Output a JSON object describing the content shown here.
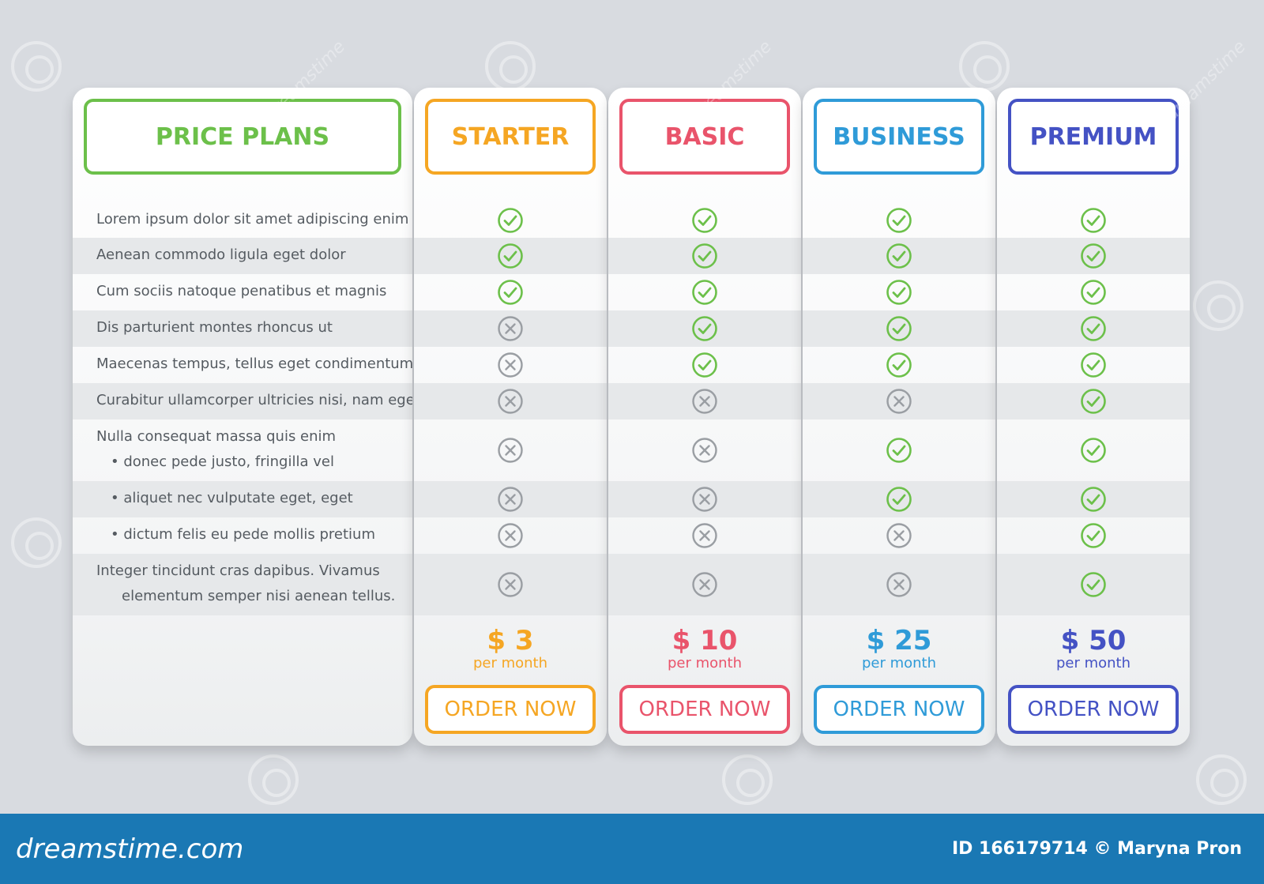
{
  "colors": {
    "features": "#6cc04a",
    "starter": "#f5a623",
    "basic": "#e9546b",
    "business": "#2f9bd8",
    "premium": "#4452c4",
    "check": "#6cc04a",
    "cross": "#9a9ea3"
  },
  "header": {
    "title": "PRICE PLANS"
  },
  "features": [
    {
      "text": "Lorem ipsum dolor sit amet adipiscing enim"
    },
    {
      "text": "Aenean commodo ligula eget dolor"
    },
    {
      "text": "Cum sociis natoque penatibus et magnis"
    },
    {
      "text": "Dis parturient montes rhoncus ut"
    },
    {
      "text": "Maecenas tempus, tellus eget condimentum"
    },
    {
      "text": "Curabitur ullamcorper ultricies nisi, nam eget"
    },
    {
      "text": "Nulla consequat massa quis enim",
      "text2": "• donec pede justo, fringilla vel"
    },
    {
      "text": "• aliquet nec vulputate eget, eget"
    },
    {
      "text": "• dictum felis eu pede mollis pretium"
    },
    {
      "text": "Integer tincidunt cras dapibus. Vivamus",
      "text2": "elementum semper nisi aenean tellus."
    }
  ],
  "plans": [
    {
      "name": "STARTER",
      "price": "$ 3",
      "period": "per month",
      "cta": "ORDER NOW",
      "color_key": "starter",
      "marks": [
        "check-icon",
        "check-icon",
        "check-icon",
        "cross-icon",
        "cross-icon",
        "cross-icon",
        "cross-icon",
        "cross-icon",
        "cross-icon",
        "cross-icon"
      ]
    },
    {
      "name": "BASIC",
      "price": "$ 10",
      "period": "per month",
      "cta": "ORDER NOW",
      "color_key": "basic",
      "marks": [
        "check-icon",
        "check-icon",
        "check-icon",
        "check-icon",
        "check-icon",
        "cross-icon",
        "cross-icon",
        "cross-icon",
        "cross-icon",
        "cross-icon"
      ]
    },
    {
      "name": "BUSINESS",
      "price": "$ 25",
      "period": "per month",
      "cta": "ORDER NOW",
      "color_key": "business",
      "marks": [
        "check-icon",
        "check-icon",
        "check-icon",
        "check-icon",
        "check-icon",
        "cross-icon",
        "check-icon",
        "check-icon",
        "cross-icon",
        "cross-icon"
      ]
    },
    {
      "name": "PREMIUM",
      "price": "$ 50",
      "period": "per month",
      "cta": "ORDER NOW",
      "color_key": "premium",
      "marks": [
        "check-icon",
        "check-icon",
        "check-icon",
        "check-icon",
        "check-icon",
        "check-icon",
        "check-icon",
        "check-icon",
        "check-icon",
        "check-icon"
      ]
    }
  ],
  "footer": {
    "brand": "dreamstime.com",
    "credit": "ID 166179714 © Maryna Pron"
  },
  "watermark": {
    "text": "dreamstime"
  }
}
